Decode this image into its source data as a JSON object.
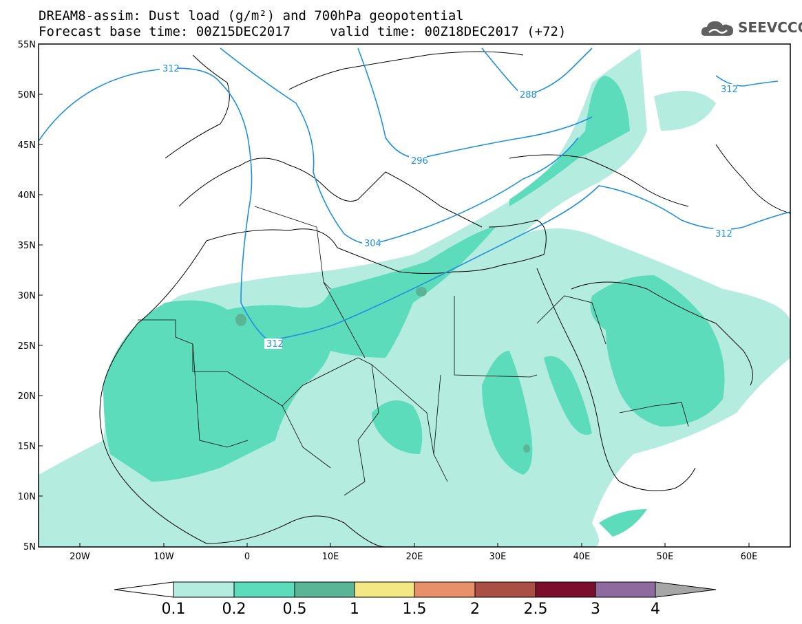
{
  "title": {
    "line1": "DREAM8-assim: Dust load (g/m²) and 700hPa geopotential",
    "line2": "Forecast base time: 00Z15DEC2017     valid time: 00Z18DEC2017 (+72)"
  },
  "logo": {
    "text": "SEEVCCC",
    "icon": "cloud-icon"
  },
  "map": {
    "lat_labels": [
      "55N",
      "50N",
      "45N",
      "40N",
      "35N",
      "30N",
      "25N",
      "20N",
      "15N",
      "10N",
      "5N"
    ],
    "lon_labels": [
      "20W",
      "10W",
      "0",
      "10E",
      "20E",
      "30E",
      "40E",
      "50E",
      "60E"
    ],
    "contour_labels": [
      "312",
      "288",
      "312",
      "296",
      "304",
      "312",
      "312"
    ],
    "colors": {
      "dust_01": "#b4ecdf",
      "dust_02": "#5ddcbc",
      "dust_05": "#5ab596",
      "contour": "#1d8fe0",
      "coast": "#000000"
    }
  },
  "colorbar": {
    "labels": [
      "0.1",
      "0.2",
      "0.5",
      "1",
      "1.5",
      "2",
      "2.5",
      "3",
      "4"
    ],
    "colors": [
      "#ffffff",
      "#b4ecdf",
      "#5ddcbc",
      "#5ab596",
      "#f3e883",
      "#e8906a",
      "#a94f43",
      "#7c0d2d",
      "#8f6a9e",
      "#a6a6a6"
    ]
  }
}
